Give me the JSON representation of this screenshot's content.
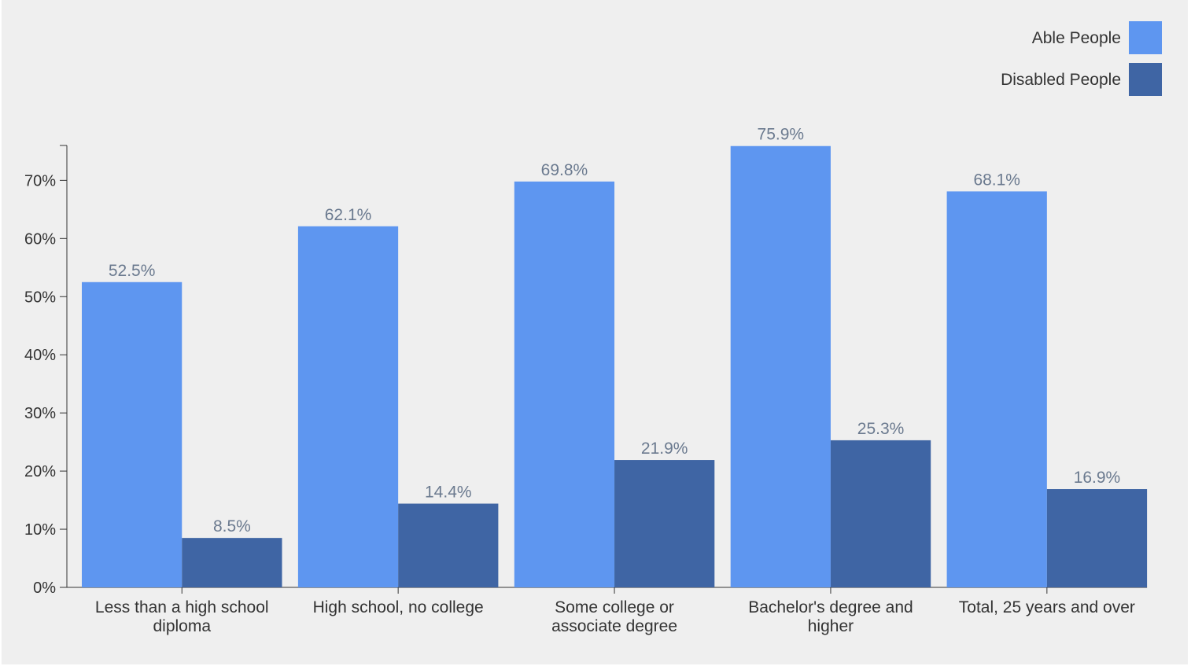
{
  "chart_data": {
    "type": "bar",
    "categories": [
      [
        "Less than a high school",
        "diploma"
      ],
      [
        "High school, no college"
      ],
      [
        "Some college or",
        "associate degree"
      ],
      [
        "Bachelor's degree and",
        "higher"
      ],
      [
        "Total, 25 years and over"
      ]
    ],
    "series": [
      {
        "name": "Able People",
        "color": "#5e96f0",
        "values": [
          52.5,
          62.1,
          69.8,
          75.9,
          68.1
        ],
        "labels": [
          "52.5%",
          "62.1%",
          "69.8%",
          "75.9%",
          "68.1%"
        ]
      },
      {
        "name": "Disabled People",
        "color": "#3f65a4",
        "values": [
          8.5,
          14.4,
          21.9,
          25.3,
          16.9
        ],
        "labels": [
          "8.5%",
          "14.4%",
          "21.9%",
          "25.3%",
          "16.9%"
        ]
      }
    ],
    "ylim": [
      0,
      76
    ],
    "yticks": [
      0,
      10,
      20,
      30,
      40,
      50,
      60,
      70
    ],
    "ytick_labels": [
      "0%",
      "10%",
      "20%",
      "30%",
      "40%",
      "50%",
      "60%",
      "70%"
    ],
    "title": "",
    "xlabel": "",
    "ylabel": "",
    "legend_position": "top-right",
    "grid": false,
    "background": "#efefef"
  }
}
